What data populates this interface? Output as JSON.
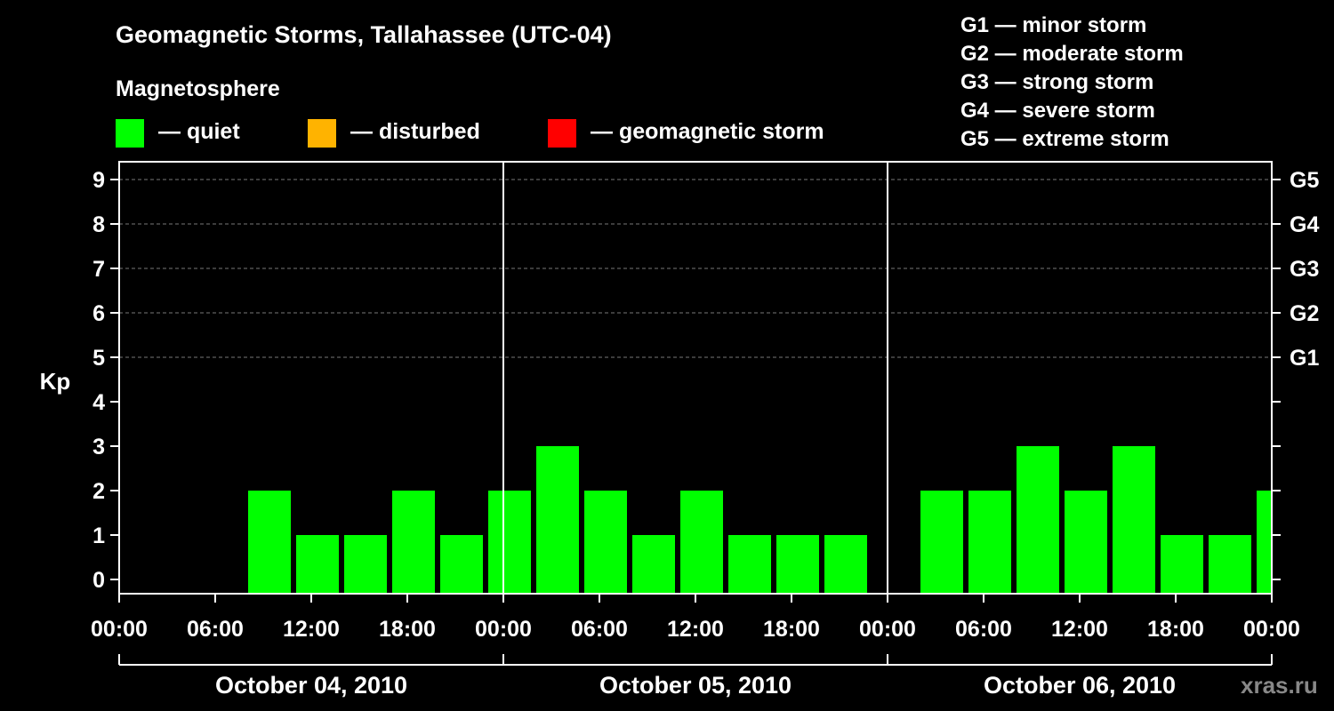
{
  "title": "Geomagnetic Storms, Tallahassee (UTC-04)",
  "magnetosphere_title": "Magnetosphere",
  "legend": [
    {
      "label": "— quiet",
      "color": "#00ff00"
    },
    {
      "label": "— disturbed",
      "color": "#ffb300"
    },
    {
      "label": "— geomagnetic storm",
      "color": "#ff0000"
    }
  ],
  "storm_scale": [
    "G1 — minor storm",
    "G2 — moderate storm",
    "G3 — strong storm",
    "G4 — severe storm",
    "G5 — extreme storm"
  ],
  "watermark": "xras.ru",
  "chart_data": {
    "type": "bar",
    "ylabel": "Kp",
    "ylim": [
      0,
      9
    ],
    "yticks": [
      0,
      1,
      2,
      3,
      4,
      5,
      6,
      7,
      8,
      9
    ],
    "right_axis_labels": [
      {
        "kp": 5,
        "label": "G1"
      },
      {
        "kp": 6,
        "label": "G2"
      },
      {
        "kp": 7,
        "label": "G3"
      },
      {
        "kp": 8,
        "label": "G4"
      },
      {
        "kp": 9,
        "label": "G5"
      }
    ],
    "x_ticks": [
      "00:00",
      "06:00",
      "12:00",
      "18:00",
      "00:00",
      "06:00",
      "12:00",
      "18:00",
      "00:00",
      "06:00",
      "12:00",
      "18:00",
      "00:00"
    ],
    "days": [
      "October 04, 2010",
      "October 05, 2010",
      "October 06, 2010"
    ],
    "grid": "dashed horizontal",
    "bars": [
      {
        "start": "08:00",
        "day": 0,
        "kp": 2,
        "color": "#00ff00"
      },
      {
        "start": "11:00",
        "day": 0,
        "kp": 1,
        "color": "#00ff00"
      },
      {
        "start": "14:00",
        "day": 0,
        "kp": 1,
        "color": "#00ff00"
      },
      {
        "start": "17:00",
        "day": 0,
        "kp": 2,
        "color": "#00ff00"
      },
      {
        "start": "20:00",
        "day": 0,
        "kp": 1,
        "color": "#00ff00"
      },
      {
        "start": "23:00",
        "day": 0,
        "kp": 2,
        "color": "#00ff00"
      },
      {
        "start": "02:00",
        "day": 1,
        "kp": 3,
        "color": "#00ff00"
      },
      {
        "start": "05:00",
        "day": 1,
        "kp": 2,
        "color": "#00ff00"
      },
      {
        "start": "08:00",
        "day": 1,
        "kp": 1,
        "color": "#00ff00"
      },
      {
        "start": "11:00",
        "day": 1,
        "kp": 2,
        "color": "#00ff00"
      },
      {
        "start": "14:00",
        "day": 1,
        "kp": 1,
        "color": "#00ff00"
      },
      {
        "start": "17:00",
        "day": 1,
        "kp": 1,
        "color": "#00ff00"
      },
      {
        "start": "20:00",
        "day": 1,
        "kp": 1,
        "color": "#00ff00"
      },
      {
        "start": "02:00",
        "day": 2,
        "kp": 2,
        "color": "#00ff00"
      },
      {
        "start": "05:00",
        "day": 2,
        "kp": 2,
        "color": "#00ff00"
      },
      {
        "start": "08:00",
        "day": 2,
        "kp": 3,
        "color": "#00ff00"
      },
      {
        "start": "11:00",
        "day": 2,
        "kp": 2,
        "color": "#00ff00"
      },
      {
        "start": "14:00",
        "day": 2,
        "kp": 3,
        "color": "#00ff00"
      },
      {
        "start": "17:00",
        "day": 2,
        "kp": 1,
        "color": "#00ff00"
      },
      {
        "start": "20:00",
        "day": 2,
        "kp": 1,
        "color": "#00ff00"
      },
      {
        "start": "23:00",
        "day": 2,
        "kp": 2,
        "color": "#00ff00"
      }
    ]
  }
}
